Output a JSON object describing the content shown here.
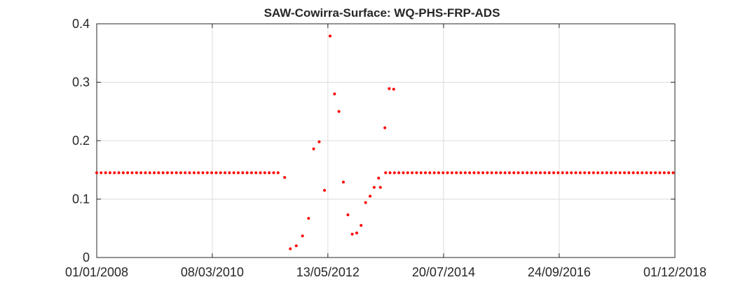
{
  "chart_data": {
    "type": "scatter",
    "title": "SAW-Cowirra-Surface: WQ-PHS-FRP-ADS",
    "xlabel": "",
    "ylabel": "",
    "x_axis_type": "date",
    "xlim": [
      "2008-01-01",
      "2018-12-01"
    ],
    "ylim": [
      0,
      0.4
    ],
    "x_ticks": [
      {
        "value": "2008-01-01",
        "label": "01/01/2008"
      },
      {
        "value": "2010-03-08",
        "label": "08/03/2010"
      },
      {
        "value": "2012-05-13",
        "label": "13/05/2012"
      },
      {
        "value": "2014-07-20",
        "label": "20/07/2014"
      },
      {
        "value": "2016-09-24",
        "label": "24/09/2016"
      },
      {
        "value": "2018-12-01",
        "label": "01/12/2018"
      }
    ],
    "y_ticks": [
      {
        "value": 0,
        "label": "0"
      },
      {
        "value": 0.1,
        "label": "0.1"
      },
      {
        "value": 0.2,
        "label": "0.2"
      },
      {
        "value": 0.3,
        "label": "0.3"
      },
      {
        "value": 0.4,
        "label": "0.4"
      }
    ],
    "grid": true,
    "marker_color": "#ff0000",
    "series": [
      {
        "baseline_periods": [
          {
            "start": "2008-01-01",
            "end": "2011-06-10",
            "step_days": 30.5,
            "value": 0.145
          },
          {
            "start": "2013-06-15",
            "end": "2018-12-01",
            "step_days": 30.5,
            "value": 0.145
          }
        ],
        "points": [
          {
            "x": "2011-07-20",
            "y": 0.137
          },
          {
            "x": "2011-08-28",
            "y": 0.015
          },
          {
            "x": "2011-10-08",
            "y": 0.02
          },
          {
            "x": "2011-11-20",
            "y": 0.037
          },
          {
            "x": "2012-01-01",
            "y": 0.067
          },
          {
            "x": "2012-02-05",
            "y": 0.186
          },
          {
            "x": "2012-03-14",
            "y": 0.198
          },
          {
            "x": "2012-04-20",
            "y": 0.115
          },
          {
            "x": "2012-05-28",
            "y": 0.379
          },
          {
            "x": "2012-06-28",
            "y": 0.28
          },
          {
            "x": "2012-07-28",
            "y": 0.25
          },
          {
            "x": "2012-08-28",
            "y": 0.129
          },
          {
            "x": "2012-09-28",
            "y": 0.073
          },
          {
            "x": "2012-10-28",
            "y": 0.04
          },
          {
            "x": "2012-11-28",
            "y": 0.042
          },
          {
            "x": "2012-12-28",
            "y": 0.055
          },
          {
            "x": "2013-01-28",
            "y": 0.094
          },
          {
            "x": "2013-02-28",
            "y": 0.105
          },
          {
            "x": "2013-03-28",
            "y": 0.12
          },
          {
            "x": "2013-04-28",
            "y": 0.136
          },
          {
            "x": "2013-05-10",
            "y": 0.12
          },
          {
            "x": "2013-06-10",
            "y": 0.222
          },
          {
            "x": "2013-07-10",
            "y": 0.289
          },
          {
            "x": "2013-08-10",
            "y": 0.288
          }
        ]
      }
    ]
  }
}
